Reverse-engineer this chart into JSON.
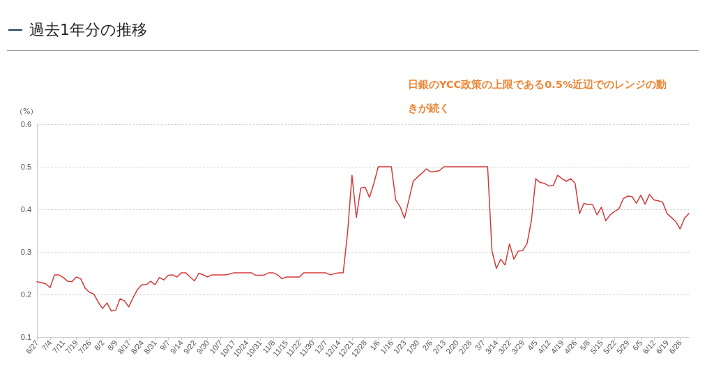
{
  "chart_data": {
    "type": "line",
    "title": "過去1年分の推移",
    "ylabel": "（%）",
    "annotations": [
      "日銀のYCC政策の上限である0.5%近辺でのレンジの動きが続く"
    ],
    "categories": [
      "6/27",
      null,
      null,
      "7/4",
      null,
      null,
      "7/11",
      null,
      null,
      "7/19",
      null,
      null,
      "7/26",
      null,
      null,
      "8/2",
      null,
      null,
      "8/9",
      null,
      null,
      "8/17",
      null,
      null,
      "8/24",
      null,
      null,
      "8/31",
      null,
      null,
      "9/7",
      null,
      null,
      "9/14",
      null,
      null,
      "9/22",
      null,
      null,
      "9/30",
      null,
      null,
      "10/7",
      null,
      null,
      "10/17",
      null,
      null,
      "10/24",
      null,
      null,
      "10/31",
      null,
      null,
      "11/8",
      null,
      null,
      "11/15",
      null,
      null,
      "11/22",
      null,
      null,
      "11/30",
      null,
      null,
      "12/7",
      null,
      null,
      "12/14",
      null,
      null,
      "12/21",
      null,
      null,
      "12/28",
      null,
      null,
      "1/6",
      null,
      null,
      "1/16",
      null,
      null,
      "1/23",
      null,
      null,
      "1/30",
      null,
      null,
      "2/6",
      null,
      null,
      "2/13",
      null,
      null,
      "2/20",
      null,
      null,
      "2/28",
      null,
      null,
      "3/7",
      null,
      null,
      "3/14",
      null,
      null,
      "3/22",
      null,
      null,
      "3/29",
      null,
      null,
      "4/5",
      null,
      null,
      "4/12",
      null,
      null,
      "4/19",
      null,
      null,
      "4/26",
      null,
      null,
      "5/8",
      null,
      null,
      "5/15",
      null,
      null,
      "5/22",
      null,
      null,
      "5/29",
      null,
      null,
      "6/5",
      null,
      null,
      "6/12",
      null,
      null,
      "6/19",
      null,
      null,
      "6/26",
      null,
      null
    ],
    "series": [
      {
        "color": "#d43a3a",
        "values": [
          0.23,
          0.228,
          0.225,
          0.216,
          0.246,
          0.246,
          0.24,
          0.231,
          0.23,
          0.241,
          0.237,
          0.215,
          0.205,
          0.201,
          0.182,
          0.167,
          0.18,
          0.161,
          0.163,
          0.19,
          0.185,
          0.171,
          0.193,
          0.212,
          0.223,
          0.223,
          0.231,
          0.223,
          0.24,
          0.234,
          0.245,
          0.246,
          0.241,
          0.251,
          0.251,
          0.241,
          0.232,
          0.25,
          0.246,
          0.241,
          0.246,
          0.246,
          0.246,
          0.246,
          0.248,
          0.251,
          0.251,
          0.251,
          0.251,
          0.251,
          0.245,
          0.245,
          0.246,
          0.251,
          0.251,
          0.246,
          0.237,
          0.241,
          0.241,
          0.241,
          0.241,
          0.251,
          0.251,
          0.251,
          0.251,
          0.251,
          0.251,
          0.246,
          0.249,
          0.251,
          0.251,
          0.346,
          0.48,
          0.381,
          0.45,
          0.452,
          0.428,
          0.461,
          0.5,
          0.5,
          0.5,
          0.5,
          0.422,
          0.406,
          0.379,
          0.422,
          0.466,
          0.476,
          0.485,
          0.495,
          0.488,
          0.489,
          0.491,
          0.5,
          0.5,
          0.5,
          0.5,
          0.5,
          0.5,
          0.5,
          0.5,
          0.5,
          0.5,
          0.5,
          0.302,
          0.261,
          0.283,
          0.269,
          0.319,
          0.283,
          0.302,
          0.303,
          0.319,
          0.373,
          0.472,
          0.463,
          0.461,
          0.455,
          0.456,
          0.48,
          0.472,
          0.466,
          0.472,
          0.461,
          0.39,
          0.414,
          0.411,
          0.411,
          0.387,
          0.405,
          0.373,
          0.387,
          0.395,
          0.401,
          0.425,
          0.431,
          0.43,
          0.414,
          0.433,
          0.412,
          0.435,
          0.422,
          0.42,
          0.417,
          0.39,
          0.381,
          0.371,
          0.354,
          0.379,
          0.39
        ]
      }
    ],
    "ylim": [
      0.1,
      0.6
    ],
    "yticks": [
      0.1,
      0.2,
      0.3,
      0.4,
      0.5,
      0.6
    ],
    "grid": "y",
    "marker": "none",
    "line_style": "solid"
  }
}
